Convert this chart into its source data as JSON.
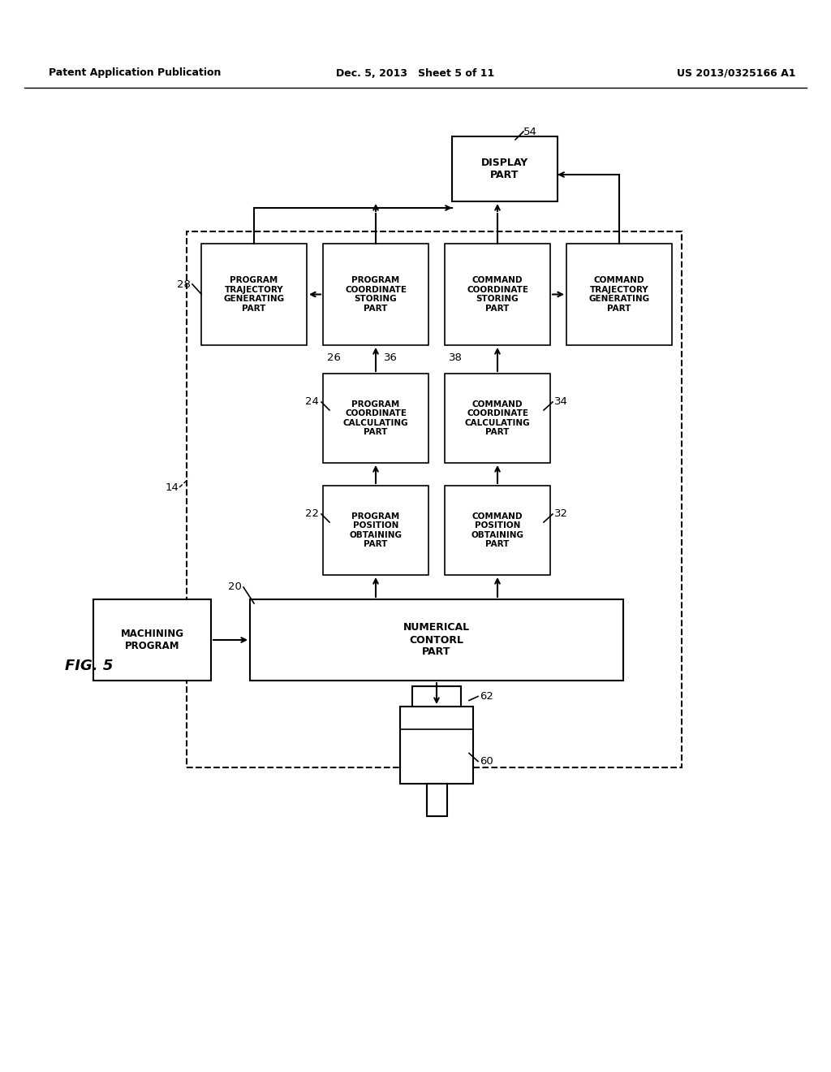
{
  "bg_color": "#ffffff",
  "header_left": "Patent Application Publication",
  "header_mid": "Dec. 5, 2013   Sheet 5 of 11",
  "header_right": "US 2013/0325166 A1",
  "fig_label": "FIG. 5"
}
